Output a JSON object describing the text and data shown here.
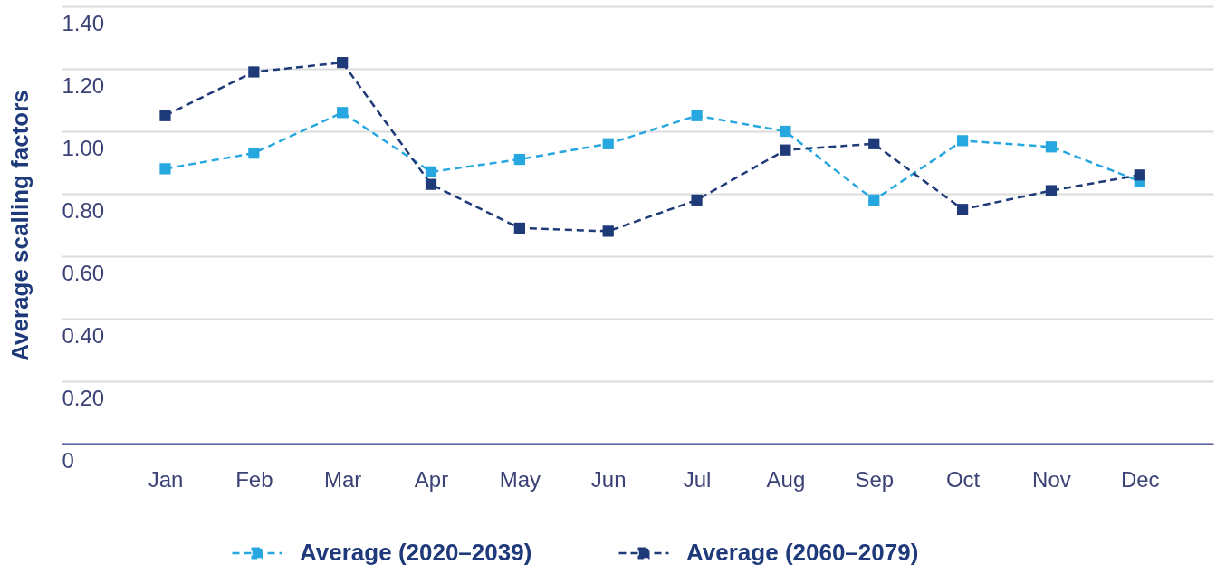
{
  "chart_data": {
    "type": "line",
    "ylabel": "Average scalling factors",
    "categories": [
      "Jan",
      "Feb",
      "Mar",
      "Apr",
      "May",
      "Jun",
      "Jul",
      "Aug",
      "Sep",
      "Oct",
      "Nov",
      "Dec"
    ],
    "series": [
      {
        "name": "Average (2020–2039)",
        "color": "#27a7df",
        "values": [
          0.88,
          0.93,
          1.06,
          0.87,
          0.91,
          0.96,
          1.05,
          1.0,
          0.78,
          0.97,
          0.95,
          0.84
        ]
      },
      {
        "name": "Average (2060–2079)",
        "color": "#1e3a78",
        "values": [
          1.05,
          1.19,
          1.22,
          0.83,
          0.69,
          0.68,
          0.78,
          0.94,
          0.96,
          0.75,
          0.81,
          0.86
        ]
      }
    ],
    "ylim": [
      0,
      1.4
    ],
    "yticks": [
      0,
      {
        "value": 0.2,
        "label": "0.20"
      },
      {
        "value": 0.4,
        "label": "0.40"
      },
      {
        "value": 0.6,
        "label": "0.60"
      },
      {
        "value": 0.8,
        "label": "0.80"
      },
      {
        "value": 1.0,
        "label": "1.00"
      },
      {
        "value": 1.2,
        "label": "1.20"
      },
      {
        "value": 1.4,
        "label": "1.40"
      }
    ],
    "grid": "y",
    "legend": "bottom",
    "marker": "square",
    "line_style": "dashed"
  }
}
